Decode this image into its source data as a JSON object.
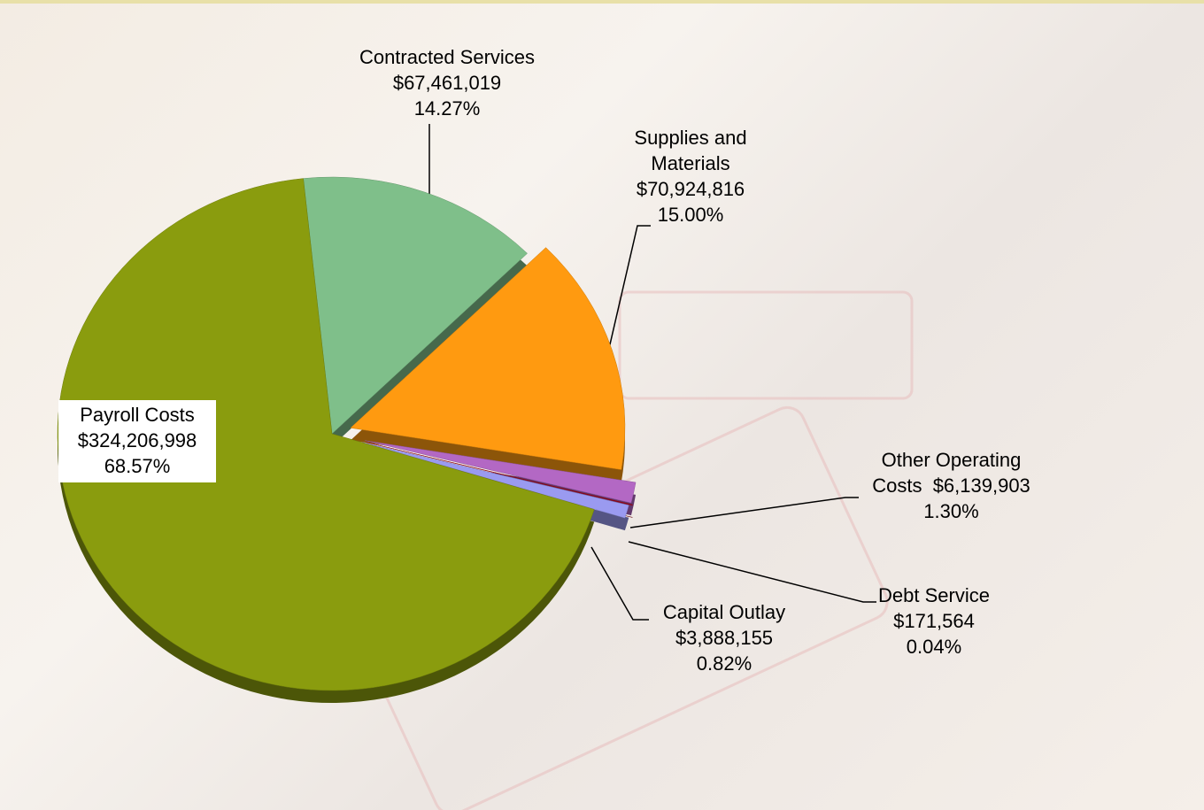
{
  "chart_data": {
    "type": "pie",
    "categories": [
      "Contracted Services",
      "Supplies and Materials",
      "Other Operating Costs",
      "Debt Service",
      "Capital Outlay",
      "Payroll Costs"
    ],
    "values": [
      67461019,
      70924816,
      6139903,
      171564,
      3888155,
      324206998
    ],
    "value_labels": [
      "$67,461,019",
      "$70,924,816",
      "$6,139,903",
      "$171,564",
      "$3,888,155",
      "$324,206,998"
    ],
    "percents": [
      14.27,
      15.0,
      1.3,
      0.04,
      0.82,
      68.57
    ],
    "percent_labels": [
      "14.27%",
      "15.00%",
      "1.30%",
      "0.04%",
      "0.82%",
      "68.57%"
    ],
    "colors": [
      "#7fbf8a",
      "#ff9a10",
      "#b368c4",
      "#b00010",
      "#9a9af0",
      "#8a9c0e"
    ]
  }
}
